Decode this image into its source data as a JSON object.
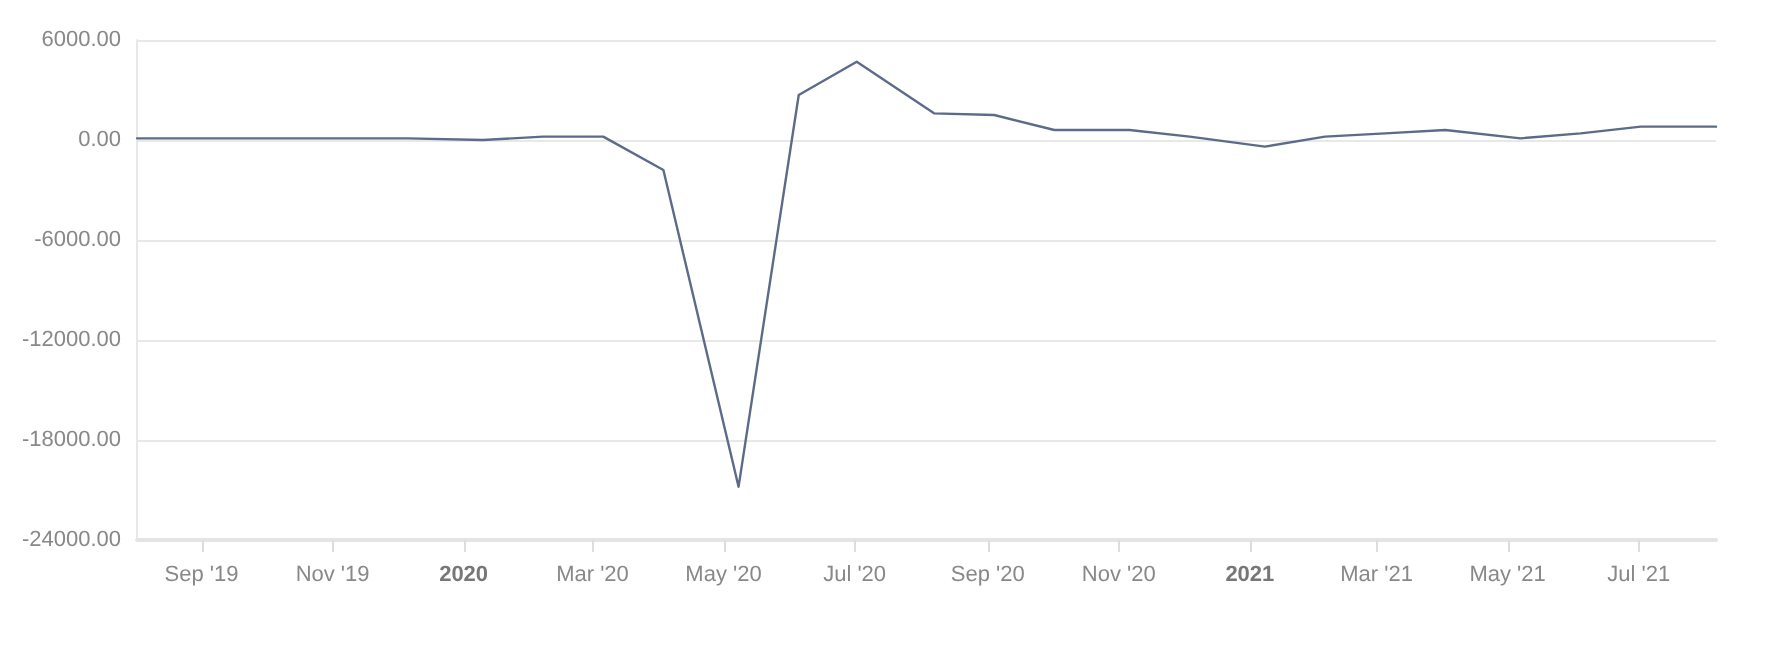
{
  "chart_data": {
    "type": "line",
    "x": [
      "2019-08-02",
      "2019-09-06",
      "2019-10-04",
      "2019-11-01",
      "2019-12-06",
      "2020-01-10",
      "2020-02-07",
      "2020-03-06",
      "2020-04-03",
      "2020-05-08",
      "2020-06-05",
      "2020-07-02",
      "2020-08-07",
      "2020-09-04",
      "2020-10-02",
      "2020-11-06",
      "2020-12-04",
      "2021-01-08",
      "2021-02-05",
      "2021-03-05",
      "2021-04-02",
      "2021-05-07",
      "2021-06-04",
      "2021-07-02",
      "2021-08-06"
    ],
    "series": [
      {
        "color": "#5d6b89",
        "values": [
          100,
          100,
          100,
          100,
          100,
          0,
          200,
          200,
          -1800,
          -20800,
          2700,
          4700,
          1600,
          1500,
          600,
          600,
          200,
          -400,
          200,
          400,
          600,
          100,
          400,
          800,
          800
        ]
      }
    ],
    "xlim": [
      "2019-08-02",
      "2021-08-06"
    ],
    "xticks": [
      {
        "value": "2019-09-01",
        "label": "Sep '19"
      },
      {
        "value": "2019-11-01",
        "label": "Nov '19"
      },
      {
        "value": "2020-01-01",
        "label": "2020"
      },
      {
        "value": "2020-03-01",
        "label": "Mar '20"
      },
      {
        "value": "2020-05-01",
        "label": "May '20"
      },
      {
        "value": "2020-07-01",
        "label": "Jul '20"
      },
      {
        "value": "2020-09-01",
        "label": "Sep '20"
      },
      {
        "value": "2020-11-01",
        "label": "Nov '20"
      },
      {
        "value": "2021-01-01",
        "label": "2021"
      },
      {
        "value": "2021-03-01",
        "label": "Mar '21"
      },
      {
        "value": "2021-05-01",
        "label": "May '21"
      },
      {
        "value": "2021-07-01",
        "label": "Jul '21"
      }
    ],
    "ylim": [
      -24000,
      6000
    ],
    "yticks": [
      {
        "value": -24000,
        "label": "-24000.00"
      },
      {
        "value": -18000,
        "label": "-18000.00"
      },
      {
        "value": -12000,
        "label": "-12000.00"
      },
      {
        "value": -6000,
        "label": "-6000.00"
      },
      {
        "value": 0,
        "label": "0.00"
      },
      {
        "value": 6000,
        "label": "6000.00"
      }
    ],
    "grid": "y",
    "marker": "none",
    "line_style": "solid"
  }
}
